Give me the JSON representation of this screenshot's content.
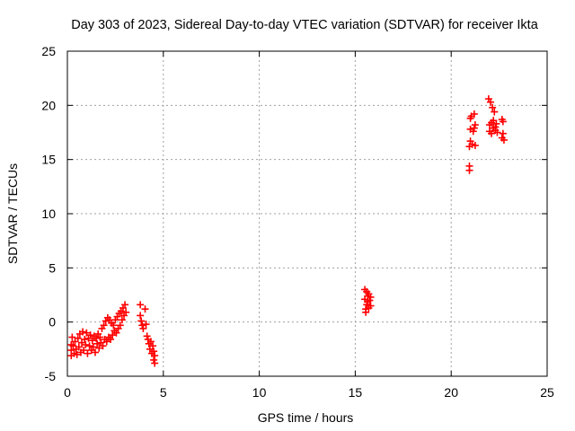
{
  "chart_data": {
    "type": "scatter",
    "title": "Day 303 of 2023, Sidereal Day-to-day VTEC variation (SDTVAR) for receiver Ikta",
    "xlabel": "GPS time / hours",
    "ylabel": "SDTVAR / TECUs",
    "xlim": [
      0,
      25
    ],
    "ylim": [
      -5,
      25
    ],
    "xticks": [
      "0",
      "5",
      "10",
      "15",
      "20",
      "25"
    ],
    "yticks": [
      "-5",
      "0",
      "5",
      "10",
      "15",
      "20",
      "25"
    ],
    "grid": true,
    "marker": "+",
    "color": "#ff0000",
    "series": [
      {
        "name": "SDTVAR",
        "points": [
          [
            0.2,
            -2.1
          ],
          [
            0.2,
            -2.6
          ],
          [
            0.2,
            -3.1
          ],
          [
            0.25,
            -1.4
          ],
          [
            0.3,
            -2.2
          ],
          [
            0.35,
            -2.9
          ],
          [
            0.4,
            -1.8
          ],
          [
            0.45,
            -2.5
          ],
          [
            0.5,
            -3.0
          ],
          [
            0.55,
            -1.5
          ],
          [
            0.6,
            -2.3
          ],
          [
            0.65,
            -1.1
          ],
          [
            0.7,
            -2.8
          ],
          [
            0.75,
            -1.9
          ],
          [
            0.8,
            -0.9
          ],
          [
            0.85,
            -2.6
          ],
          [
            0.9,
            -1.6
          ],
          [
            0.95,
            -2.1
          ],
          [
            1.0,
            -1.0
          ],
          [
            1.05,
            -2.9
          ],
          [
            1.1,
            -1.5
          ],
          [
            1.15,
            -2.2
          ],
          [
            1.2,
            -1.2
          ],
          [
            1.25,
            -2.6
          ],
          [
            1.3,
            -1.7
          ],
          [
            1.35,
            -2.3
          ],
          [
            1.4,
            -1.3
          ],
          [
            1.45,
            -2.8
          ],
          [
            1.5,
            -1.5
          ],
          [
            1.55,
            -2.0
          ],
          [
            1.6,
            -1.1
          ],
          [
            1.65,
            -2.4
          ],
          [
            1.7,
            -1.4
          ],
          [
            1.75,
            -1.9
          ],
          [
            1.8,
            -0.6
          ],
          [
            1.85,
            -2.2
          ],
          [
            1.9,
            -0.3
          ],
          [
            1.95,
            -1.6
          ],
          [
            2.0,
            0.1
          ],
          [
            2.05,
            -1.8
          ],
          [
            2.1,
            0.4
          ],
          [
            2.15,
            -1.4
          ],
          [
            2.2,
            0.2
          ],
          [
            2.25,
            -1.6
          ],
          [
            2.3,
            -0.1
          ],
          [
            2.35,
            -1.2
          ],
          [
            2.4,
            -0.3
          ],
          [
            2.45,
            -0.8
          ],
          [
            2.5,
            0.2
          ],
          [
            2.55,
            -1.0
          ],
          [
            2.6,
            0.5
          ],
          [
            2.65,
            -0.6
          ],
          [
            2.7,
            0.8
          ],
          [
            2.75,
            -0.3
          ],
          [
            2.8,
            1.0
          ],
          [
            2.85,
            0.2
          ],
          [
            2.9,
            1.3
          ],
          [
            2.95,
            0.6
          ],
          [
            3.0,
            1.6
          ],
          [
            3.05,
            0.9
          ],
          [
            3.8,
            1.6
          ],
          [
            3.8,
            0.6
          ],
          [
            3.85,
            0.1
          ],
          [
            3.9,
            -0.3
          ],
          [
            3.95,
            -0.6
          ],
          [
            4.05,
            1.2
          ],
          [
            4.1,
            -0.2
          ],
          [
            4.15,
            -1.3
          ],
          [
            4.2,
            -1.6
          ],
          [
            4.25,
            -2.0
          ],
          [
            4.3,
            -2.5
          ],
          [
            4.35,
            -1.8
          ],
          [
            4.4,
            -2.9
          ],
          [
            4.45,
            -2.2
          ],
          [
            4.5,
            -3.5
          ],
          [
            4.5,
            -2.7
          ],
          [
            4.55,
            -3.1
          ],
          [
            4.55,
            -3.8
          ],
          [
            15.5,
            3.0
          ],
          [
            15.5,
            2.1
          ],
          [
            15.55,
            1.2
          ],
          [
            15.55,
            0.9
          ],
          [
            15.6,
            2.8
          ],
          [
            15.6,
            1.6
          ],
          [
            15.65,
            2.4
          ],
          [
            15.65,
            1.9
          ],
          [
            15.7,
            1.3
          ],
          [
            15.7,
            2.6
          ],
          [
            15.75,
            2.0
          ],
          [
            15.8,
            2.3
          ],
          [
            15.8,
            1.5
          ],
          [
            20.95,
            14.0
          ],
          [
            20.95,
            14.4
          ],
          [
            20.95,
            16.2
          ],
          [
            21.0,
            16.7
          ],
          [
            21.0,
            17.8
          ],
          [
            21.0,
            18.8
          ],
          [
            21.05,
            19.0
          ],
          [
            21.1,
            16.4
          ],
          [
            21.15,
            17.6
          ],
          [
            21.2,
            17.9
          ],
          [
            21.2,
            19.2
          ],
          [
            21.25,
            16.3
          ],
          [
            21.25,
            18.2
          ],
          [
            21.95,
            20.6
          ],
          [
            22.0,
            17.6
          ],
          [
            22.0,
            18.2
          ],
          [
            22.05,
            20.3
          ],
          [
            22.1,
            17.4
          ],
          [
            22.1,
            18.4
          ],
          [
            22.15,
            19.8
          ],
          [
            22.2,
            17.9
          ],
          [
            22.2,
            18.6
          ],
          [
            22.25,
            19.4
          ],
          [
            22.3,
            18.0
          ],
          [
            22.3,
            17.7
          ],
          [
            22.35,
            18.3
          ],
          [
            22.4,
            17.5
          ],
          [
            22.65,
            17.0
          ],
          [
            22.65,
            18.7
          ],
          [
            22.7,
            17.4
          ],
          [
            22.7,
            18.5
          ],
          [
            22.75,
            16.8
          ]
        ]
      }
    ]
  }
}
